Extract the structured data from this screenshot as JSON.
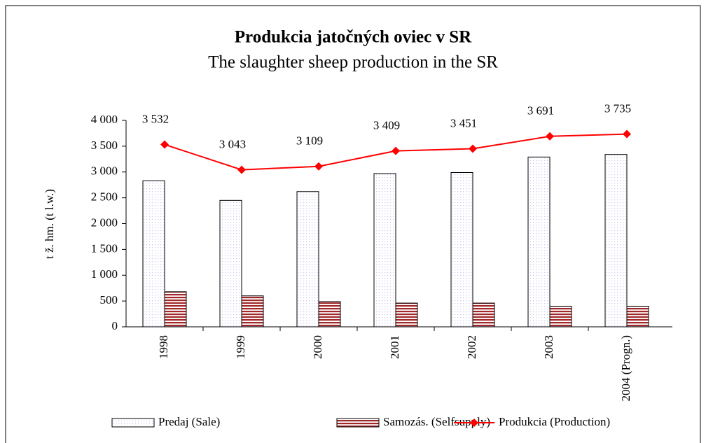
{
  "chart_data": {
    "type": "bar_line",
    "title": "Produkcia jatočných oviec v SR",
    "subtitle": "The slaughter sheep production in the SR",
    "y_label": "t ž. hm. (t l.w.)",
    "categories": [
      "1998",
      "1999",
      "2000",
      "2001",
      "2002",
      "2003",
      "2004 (Progn.)"
    ],
    "series": [
      {
        "name": "Predaj (Sale)",
        "type": "bar",
        "color": "#c8c8f0",
        "values": [
          2830,
          2450,
          2620,
          2970,
          2990,
          3290,
          3340
        ]
      },
      {
        "name": "Samozás. (Selfsupply)",
        "type": "bar",
        "color": "#a0282a",
        "values": [
          680,
          600,
          490,
          460,
          460,
          400,
          400
        ]
      },
      {
        "name": "Produkcia (Production)",
        "type": "line",
        "color": "#ff0000",
        "values": [
          3532,
          3043,
          3109,
          3409,
          3451,
          3691,
          3735
        ],
        "value_labels": [
          "3 532",
          "3 043",
          "3 109",
          "3 409",
          "3 451",
          "3 691",
          "3 735"
        ]
      }
    ],
    "ylim": [
      0,
      4000
    ],
    "yticks": [
      0,
      500,
      {
        "value": 1000,
        "label": "1 000"
      },
      {
        "value": 1500,
        "label": "1 500"
      },
      {
        "value": 2000,
        "label": "2 000"
      },
      {
        "value": 2500,
        "label": "2 500"
      },
      {
        "value": 3000,
        "label": "3 000"
      },
      {
        "value": 3500,
        "label": "3 500"
      },
      {
        "value": 4000,
        "label": "4 000"
      }
    ],
    "legend": "bottom"
  }
}
